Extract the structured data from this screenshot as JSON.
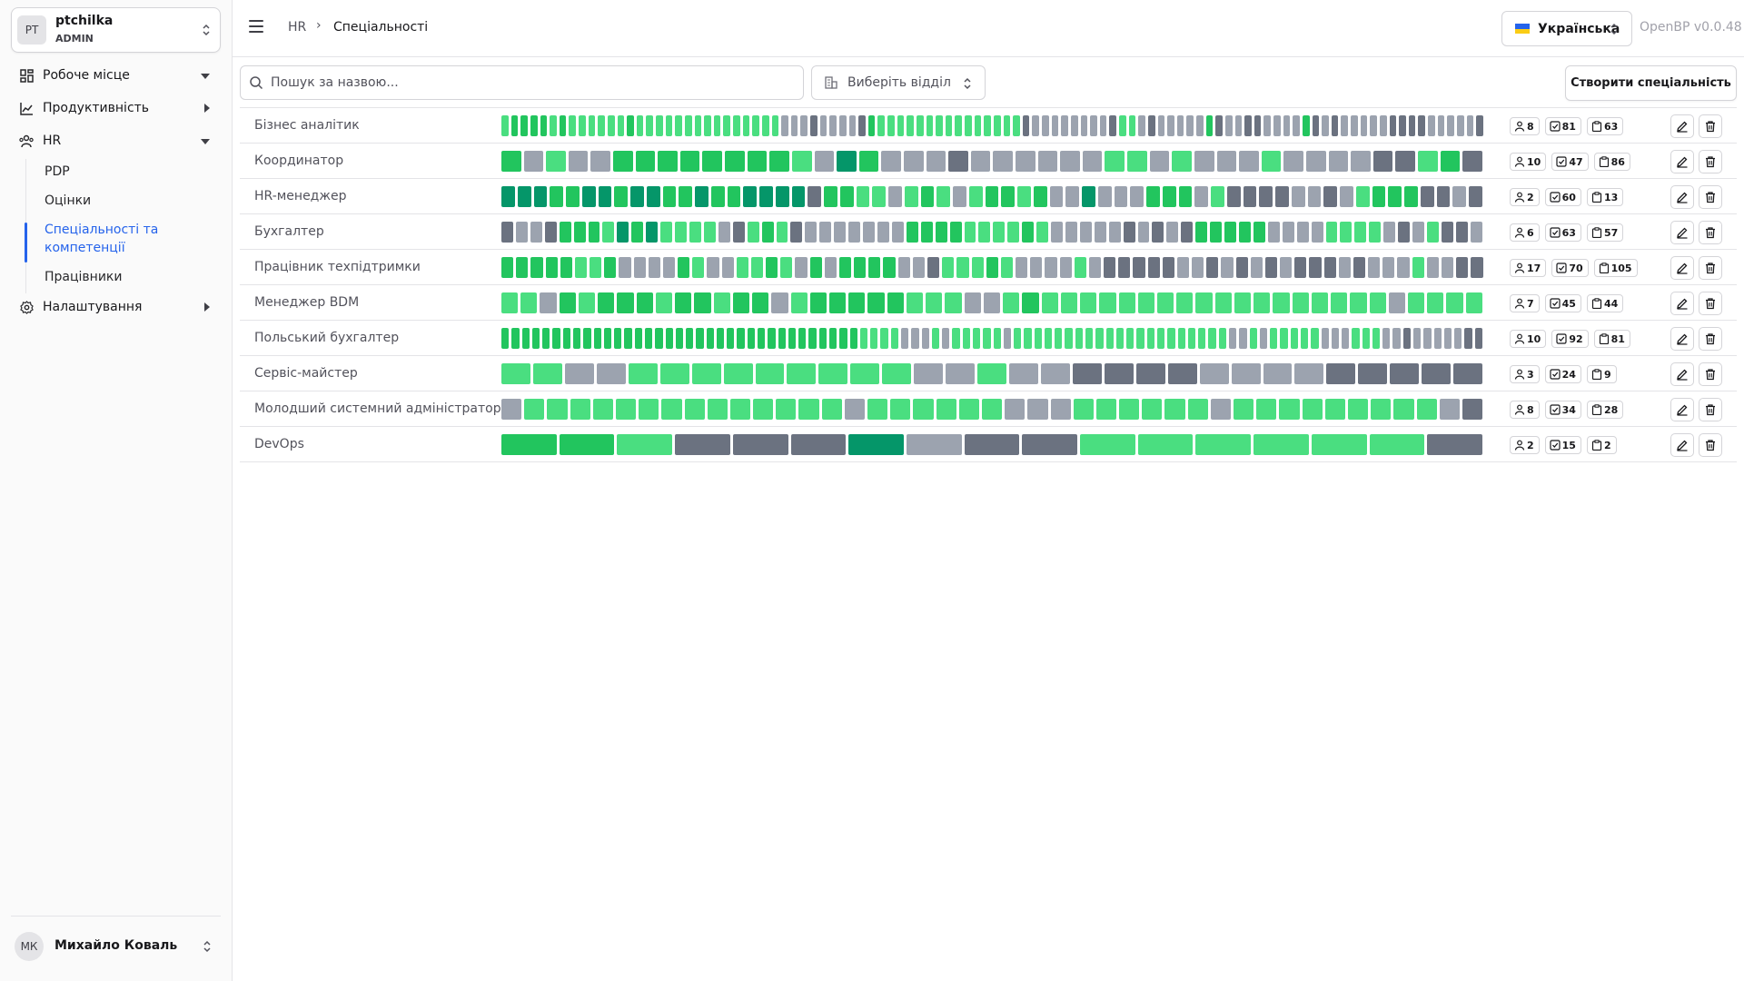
{
  "sidebar": {
    "team": {
      "initials": "PT",
      "name": "ptchilka",
      "role": "ADMIN"
    },
    "nav": [
      {
        "label": "Робоче місце",
        "icon": "dashboard-icon",
        "expanded": false
      },
      {
        "label": "Продуктивність",
        "icon": "chart-line-icon",
        "expanded": false
      },
      {
        "label": "HR",
        "icon": "users-icon",
        "expanded": true
      },
      {
        "label": "Налаштування",
        "icon": "gear-icon",
        "expanded": false
      }
    ],
    "hr_items": [
      "PDP",
      "Оцінки",
      "Спеціальності та компетенції",
      "Працівники"
    ],
    "active_item": "Спеціальності та компетенції",
    "user": {
      "initials": "МК",
      "name": "Михайло Коваль"
    }
  },
  "header": {
    "breadcrumb_root": "HR",
    "breadcrumb_sep": "›",
    "breadcrumb_current": "Спеціальності",
    "language": "Українська",
    "version": "OpenBP v0.0.48"
  },
  "toolbar": {
    "search_placeholder": "Пошук за назвою...",
    "department_placeholder": "Виберіть відділ",
    "create_label": "Створити спеціальність"
  },
  "colors": {
    "accent": "#2563eb",
    "c1": "#4ade80",
    "c2": "#22c55e",
    "c3": "#059669",
    "c4": "#9ca3af",
    "c5": "#6b7280"
  },
  "specialties": [
    {
      "name": "Бізнес аналітик",
      "users": "8",
      "competencies": "81",
      "tasks": "63",
      "cells": "122221211111121111111111111114445444452111111111111111544444444511454444425445544442545444445555444445"
    },
    {
      "name": "Координатор",
      "users": "10",
      "competencies": "47",
      "tasks": "86",
      "cells": "24144222222221432444544444411414441444455125"
    },
    {
      "name": "HR-менеджер",
      "users": "2",
      "competencies": "60",
      "tasks": "13",
      "cells": "3332233233223223333522114121412212443444222415555445412225545"
    },
    {
      "name": "Бухгалтер",
      "users": "6",
      "competencies": "63",
      "tasks": "57",
      "cells": "54452221323111145121544444442222111121444445454522222444411114541554"
    },
    {
      "name": "Працівник техпідтримки",
      "users": "17",
      "competencies": "70",
      "tasks": "105",
      "cells": "2222211244442144112142422224451112144441455555445454545554544414455"
    },
    {
      "name": "Менеджер BDM",
      "users": "7",
      "competencies": "45",
      "tasks": "44",
      "cells": "114212221221224122222111441211111111111111111141111"
    },
    {
      "name": "Польський бухгалтер",
      "users": "10",
      "competencies": "92",
      "tasks": "81",
      "cells": "222222222222222222222222222222222221111444141111141111111111111111111114414111114441114454444455"
    },
    {
      "name": "Сервіс-майстер",
      "users": "3",
      "competencies": "24",
      "tasks": "9",
      "cells": "1144111111111441445555444455555"
    },
    {
      "name": "Молодший системний адміністратор",
      "users": "8",
      "competencies": "34",
      "tasks": "28",
      "cells": "4111111111111114111111444111111411111111145"
    },
    {
      "name": "DevOps",
      "users": "2",
      "competencies": "15",
      "tasks": "2",
      "cells": "22155534551111115"
    }
  ]
}
